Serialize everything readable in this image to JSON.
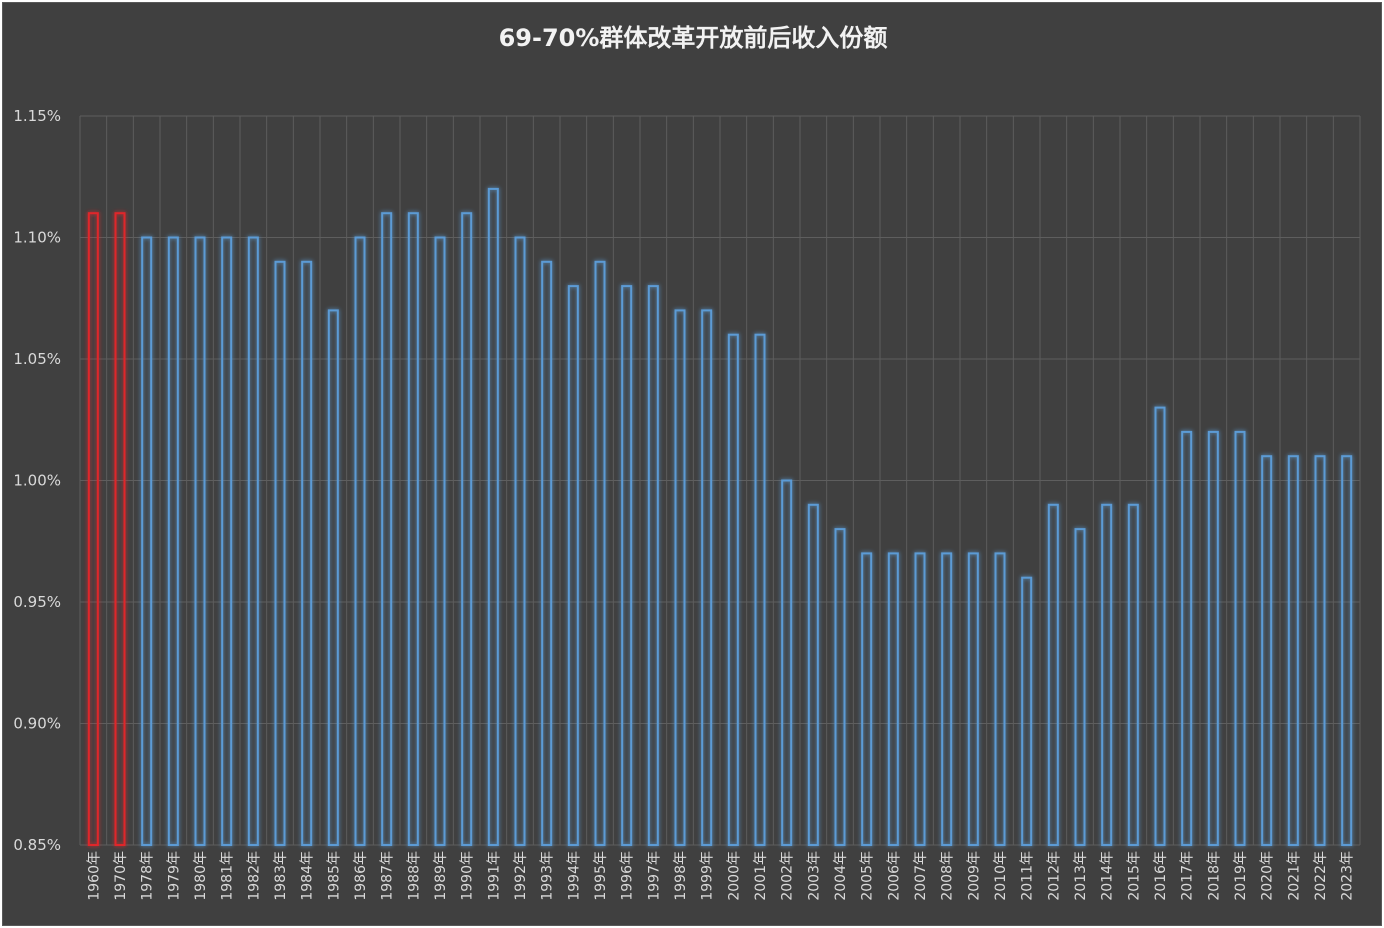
{
  "colors": {
    "background": "#404040",
    "grid": "#5e5e5e",
    "text": "#d9d9d9",
    "bar_default": "#5b9bd5",
    "bar_highlight": "#e0262b"
  },
  "chart_data": {
    "type": "bar",
    "title": "69-70%群体改革开放前后收入份额",
    "xlabel": "",
    "ylabel": "",
    "ylim": [
      0.85,
      1.15
    ],
    "y_ticks": [
      "0.85%",
      "0.90%",
      "0.95%",
      "1.00%",
      "1.05%",
      "1.10%",
      "1.15%"
    ],
    "y_tick_values": [
      0.85,
      0.9,
      0.95,
      1.0,
      1.05,
      1.1,
      1.15
    ],
    "grid": true,
    "legend": "none",
    "bar_style": "outline",
    "categories": [
      "1960年",
      "1970年",
      "1978年",
      "1979年",
      "1980年",
      "1981年",
      "1982年",
      "1983年",
      "1984年",
      "1985年",
      "1986年",
      "1987年",
      "1988年",
      "1989年",
      "1990年",
      "1991年",
      "1992年",
      "1993年",
      "1994年",
      "1995年",
      "1996年",
      "1997年",
      "1998年",
      "1999年",
      "2000年",
      "2001年",
      "2002年",
      "2003年",
      "2004年",
      "2005年",
      "2006年",
      "2007年",
      "2008年",
      "2009年",
      "2010年",
      "2011年",
      "2012年",
      "2013年",
      "2014年",
      "2015年",
      "2016年",
      "2017年",
      "2018年",
      "2019年",
      "2020年",
      "2021年",
      "2022年",
      "2023年"
    ],
    "values": [
      1.11,
      1.11,
      1.1,
      1.1,
      1.1,
      1.1,
      1.1,
      1.09,
      1.09,
      1.07,
      1.1,
      1.11,
      1.11,
      1.1,
      1.11,
      1.12,
      1.1,
      1.09,
      1.08,
      1.09,
      1.08,
      1.08,
      1.07,
      1.07,
      1.06,
      1.06,
      1.0,
      0.99,
      0.98,
      0.97,
      0.97,
      0.97,
      0.97,
      0.97,
      0.97,
      0.96,
      0.99,
      0.98,
      0.99,
      0.99,
      1.03,
      1.02,
      1.02,
      1.02,
      1.01,
      1.01,
      1.01,
      1.01
    ],
    "highlighted_categories": [
      "1960年",
      "1970年"
    ]
  }
}
